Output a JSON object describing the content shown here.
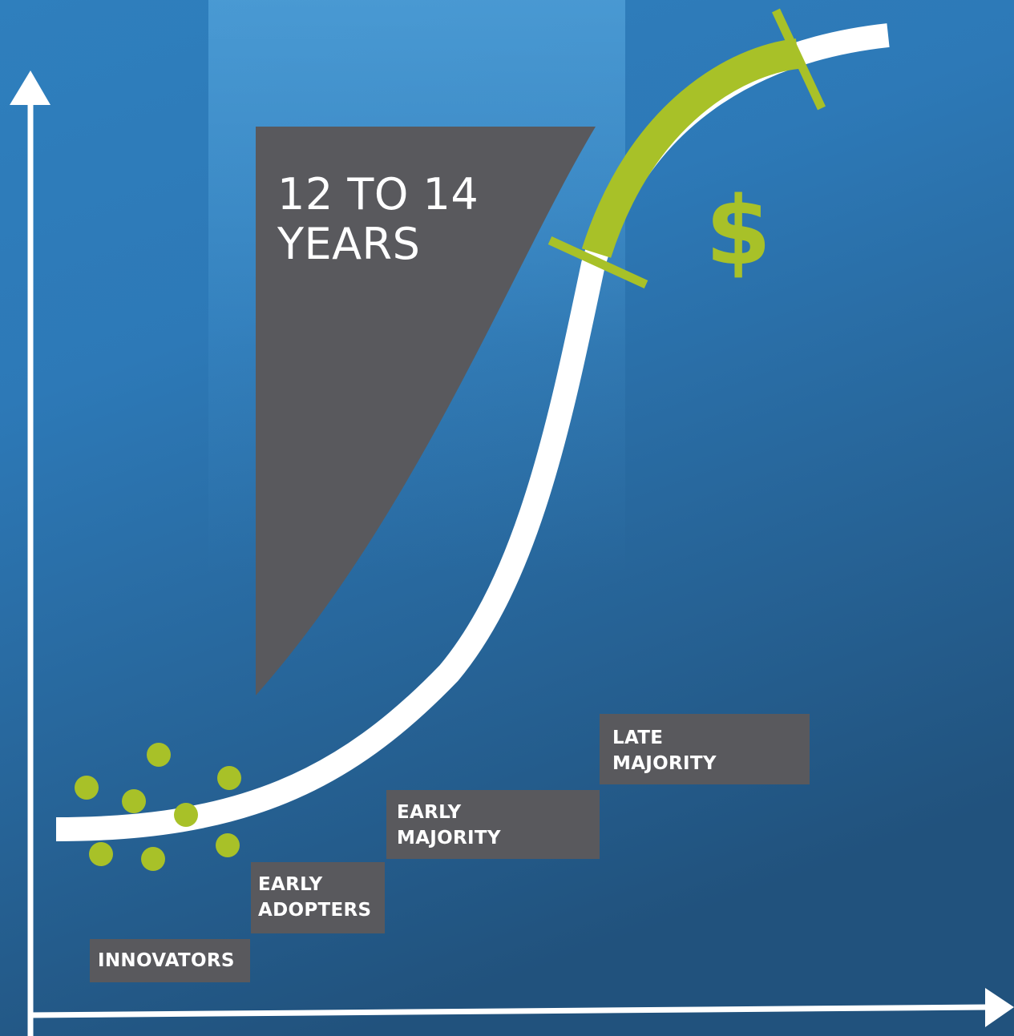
{
  "colors": {
    "background_top": "#3c8fc9",
    "background_bottom": "#21517c",
    "axis": "#ffffff",
    "curve": "#ffffff",
    "highlight": "#a8c128",
    "panel": "#59595d"
  },
  "chasm_label": {
    "line1": "12 TO 14",
    "line2": "YEARS"
  },
  "profit_symbol": "$",
  "stages": {
    "innovators": {
      "line1": "INNOVATORS"
    },
    "early_adopters": {
      "line1": "EARLY",
      "line2": "ADOPTERS"
    },
    "early_majority": {
      "line1": "EARLY",
      "line2": "MAJORITY"
    },
    "late_majority": {
      "line1": "LATE",
      "line2": "MAJORITY"
    }
  }
}
